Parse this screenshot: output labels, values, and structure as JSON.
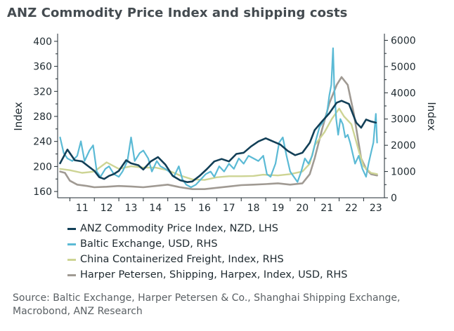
{
  "page": {
    "title": "ANZ Commodity Price Index and shipping costs",
    "source": "Source: Baltic Exchange, Harper Petersen & Co., Shanghai Shipping Exchange, Macrobond, ANZ Research"
  },
  "chart_data": {
    "type": "line",
    "title": "ANZ Commodity Price Index and shipping costs",
    "ylabel_left": "Index",
    "ylabel_right": "Index",
    "ylim_left": [
      150,
      410
    ],
    "ylim_right": [
      0,
      6200
    ],
    "yticks_left": [
      "160",
      "200",
      "240",
      "280",
      "320",
      "360",
      "400"
    ],
    "yticks_right": [
      "0",
      "1000",
      "2000",
      "3000",
      "4000",
      "5000",
      "6000"
    ],
    "xlim": [
      2010.5,
      2023.85
    ],
    "xticks": [
      "11",
      "12",
      "13",
      "14",
      "15",
      "16",
      "17",
      "18",
      "19",
      "20",
      "21",
      "22",
      "23"
    ],
    "series": [
      {
        "name": "ANZ Commodity Price Index, NZD, LHS",
        "axis": "left",
        "color": "#123f57",
        "points": [
          [
            2010.6,
            205
          ],
          [
            2010.9,
            227
          ],
          [
            2011.2,
            210
          ],
          [
            2011.5,
            208
          ],
          [
            2011.8,
            199
          ],
          [
            2012.0,
            193
          ],
          [
            2012.2,
            183
          ],
          [
            2012.4,
            180
          ],
          [
            2012.6,
            185
          ],
          [
            2012.8,
            188
          ],
          [
            2013.0,
            193
          ],
          [
            2013.3,
            210
          ],
          [
            2013.5,
            205
          ],
          [
            2013.8,
            202
          ],
          [
            2014.0,
            195
          ],
          [
            2014.3,
            208
          ],
          [
            2014.6,
            215
          ],
          [
            2014.9,
            203
          ],
          [
            2015.2,
            185
          ],
          [
            2015.5,
            178
          ],
          [
            2015.8,
            175
          ],
          [
            2016.0,
            176
          ],
          [
            2016.3,
            185
          ],
          [
            2016.6,
            196
          ],
          [
            2016.9,
            208
          ],
          [
            2017.2,
            212
          ],
          [
            2017.5,
            208
          ],
          [
            2017.8,
            220
          ],
          [
            2018.1,
            222
          ],
          [
            2018.4,
            232
          ],
          [
            2018.7,
            240
          ],
          [
            2019.0,
            245
          ],
          [
            2019.3,
            240
          ],
          [
            2019.6,
            235
          ],
          [
            2019.9,
            225
          ],
          [
            2020.2,
            218
          ],
          [
            2020.5,
            222
          ],
          [
            2020.8,
            238
          ],
          [
            2021.0,
            258
          ],
          [
            2021.3,
            272
          ],
          [
            2021.6,
            285
          ],
          [
            2021.9,
            302
          ],
          [
            2022.1,
            305
          ],
          [
            2022.4,
            300
          ],
          [
            2022.7,
            270
          ],
          [
            2022.9,
            262
          ],
          [
            2023.1,
            275
          ],
          [
            2023.3,
            272
          ],
          [
            2023.5,
            270
          ]
        ]
      },
      {
        "name": "Baltic Exchange, USD, RHS",
        "axis": "right",
        "color": "#5bbad5",
        "points": [
          [
            2010.6,
            2300
          ],
          [
            2010.75,
            1700
          ],
          [
            2010.9,
            1500
          ],
          [
            2011.1,
            1400
          ],
          [
            2011.3,
            1600
          ],
          [
            2011.45,
            2150
          ],
          [
            2011.6,
            1400
          ],
          [
            2011.8,
            1800
          ],
          [
            2011.95,
            2000
          ],
          [
            2012.1,
            1000
          ],
          [
            2012.25,
            800
          ],
          [
            2012.45,
            1100
          ],
          [
            2012.6,
            1200
          ],
          [
            2012.8,
            900
          ],
          [
            2013.0,
            800
          ],
          [
            2013.15,
            1000
          ],
          [
            2013.35,
            1400
          ],
          [
            2013.5,
            2300
          ],
          [
            2013.65,
            1400
          ],
          [
            2013.85,
            1700
          ],
          [
            2014.0,
            1800
          ],
          [
            2014.2,
            1500
          ],
          [
            2014.35,
            1000
          ],
          [
            2014.55,
            1400
          ],
          [
            2014.7,
            1200
          ],
          [
            2014.9,
            1100
          ],
          [
            2015.05,
            1000
          ],
          [
            2015.25,
            800
          ],
          [
            2015.45,
            1200
          ],
          [
            2015.6,
            700
          ],
          [
            2015.75,
            500
          ],
          [
            2015.95,
            400
          ],
          [
            2016.15,
            500
          ],
          [
            2016.35,
            700
          ],
          [
            2016.55,
            900
          ],
          [
            2016.75,
            1000
          ],
          [
            2016.9,
            800
          ],
          [
            2017.1,
            1200
          ],
          [
            2017.3,
            1000
          ],
          [
            2017.5,
            1300
          ],
          [
            2017.7,
            1100
          ],
          [
            2017.9,
            1500
          ],
          [
            2018.1,
            1300
          ],
          [
            2018.3,
            1600
          ],
          [
            2018.5,
            1500
          ],
          [
            2018.7,
            1400
          ],
          [
            2018.9,
            1600
          ],
          [
            2019.05,
            900
          ],
          [
            2019.2,
            800
          ],
          [
            2019.4,
            1300
          ],
          [
            2019.55,
            2100
          ],
          [
            2019.7,
            2300
          ],
          [
            2019.85,
            1600
          ],
          [
            2020.0,
            1000
          ],
          [
            2020.15,
            800
          ],
          [
            2020.3,
            600
          ],
          [
            2020.45,
            1000
          ],
          [
            2020.6,
            1500
          ],
          [
            2020.75,
            1300
          ],
          [
            2020.9,
            1600
          ],
          [
            2021.05,
            2200
          ],
          [
            2021.2,
            2700
          ],
          [
            2021.35,
            2900
          ],
          [
            2021.5,
            3200
          ],
          [
            2021.6,
            3900
          ],
          [
            2021.68,
            4300
          ],
          [
            2021.75,
            5700
          ],
          [
            2021.8,
            4200
          ],
          [
            2021.88,
            3000
          ],
          [
            2021.96,
            2400
          ],
          [
            2022.05,
            3000
          ],
          [
            2022.15,
            2800
          ],
          [
            2022.25,
            2300
          ],
          [
            2022.35,
            2400
          ],
          [
            2022.45,
            2100
          ],
          [
            2022.55,
            1700
          ],
          [
            2022.65,
            1300
          ],
          [
            2022.8,
            1600
          ],
          [
            2022.95,
            1100
          ],
          [
            2023.1,
            800
          ],
          [
            2023.2,
            1300
          ],
          [
            2023.3,
            1700
          ],
          [
            2023.4,
            2100
          ],
          [
            2023.5,
            3200
          ],
          [
            2023.55,
            2100
          ]
        ]
      },
      {
        "name": "China Containerized Freight, Index, RHS",
        "axis": "right",
        "color": "#cdd494",
        "points": [
          [
            2010.6,
            1100
          ],
          [
            2011.0,
            1050
          ],
          [
            2011.5,
            950
          ],
          [
            2012.0,
            1000
          ],
          [
            2012.5,
            1350
          ],
          [
            2013.0,
            1100
          ],
          [
            2013.5,
            1200
          ],
          [
            2014.0,
            1150
          ],
          [
            2014.5,
            1150
          ],
          [
            2015.0,
            1050
          ],
          [
            2015.5,
            850
          ],
          [
            2016.0,
            700
          ],
          [
            2016.5,
            680
          ],
          [
            2017.0,
            780
          ],
          [
            2017.5,
            820
          ],
          [
            2018.0,
            820
          ],
          [
            2018.5,
            830
          ],
          [
            2018.9,
            880
          ],
          [
            2019.5,
            850
          ],
          [
            2020.0,
            900
          ],
          [
            2020.5,
            1000
          ],
          [
            2020.8,
            1300
          ],
          [
            2021.0,
            2000
          ],
          [
            2021.4,
            2500
          ],
          [
            2021.7,
            3000
          ],
          [
            2022.0,
            3400
          ],
          [
            2022.2,
            3100
          ],
          [
            2022.5,
            2800
          ],
          [
            2022.8,
            1800
          ],
          [
            2023.0,
            1200
          ],
          [
            2023.3,
            950
          ],
          [
            2023.55,
            900
          ]
        ]
      },
      {
        "name": "Harper Petersen, Shipping, Harpex, Index, USD, RHS",
        "axis": "right",
        "color": "#a09a93",
        "points": [
          [
            2010.6,
            1000
          ],
          [
            2010.8,
            950
          ],
          [
            2011.0,
            650
          ],
          [
            2011.3,
            500
          ],
          [
            2011.7,
            450
          ],
          [
            2012.0,
            400
          ],
          [
            2012.5,
            420
          ],
          [
            2013.0,
            450
          ],
          [
            2013.5,
            430
          ],
          [
            2014.0,
            400
          ],
          [
            2014.5,
            450
          ],
          [
            2015.0,
            500
          ],
          [
            2015.5,
            400
          ],
          [
            2016.0,
            330
          ],
          [
            2016.5,
            330
          ],
          [
            2017.0,
            380
          ],
          [
            2017.5,
            430
          ],
          [
            2018.0,
            480
          ],
          [
            2018.5,
            500
          ],
          [
            2019.0,
            520
          ],
          [
            2019.5,
            550
          ],
          [
            2020.0,
            500
          ],
          [
            2020.5,
            550
          ],
          [
            2020.8,
            900
          ],
          [
            2021.0,
            1500
          ],
          [
            2021.3,
            2600
          ],
          [
            2021.6,
            3600
          ],
          [
            2021.9,
            4300
          ],
          [
            2022.1,
            4600
          ],
          [
            2022.35,
            4300
          ],
          [
            2022.6,
            3200
          ],
          [
            2022.9,
            1500
          ],
          [
            2023.1,
            1100
          ],
          [
            2023.3,
            900
          ],
          [
            2023.55,
            850
          ]
        ]
      }
    ],
    "legend": [
      "ANZ Commodity Price Index, NZD, LHS",
      "Baltic Exchange, USD, RHS",
      "China Containerized Freight, Index, RHS",
      "Harper Petersen, Shipping, Harpex, Index, USD, RHS"
    ]
  }
}
